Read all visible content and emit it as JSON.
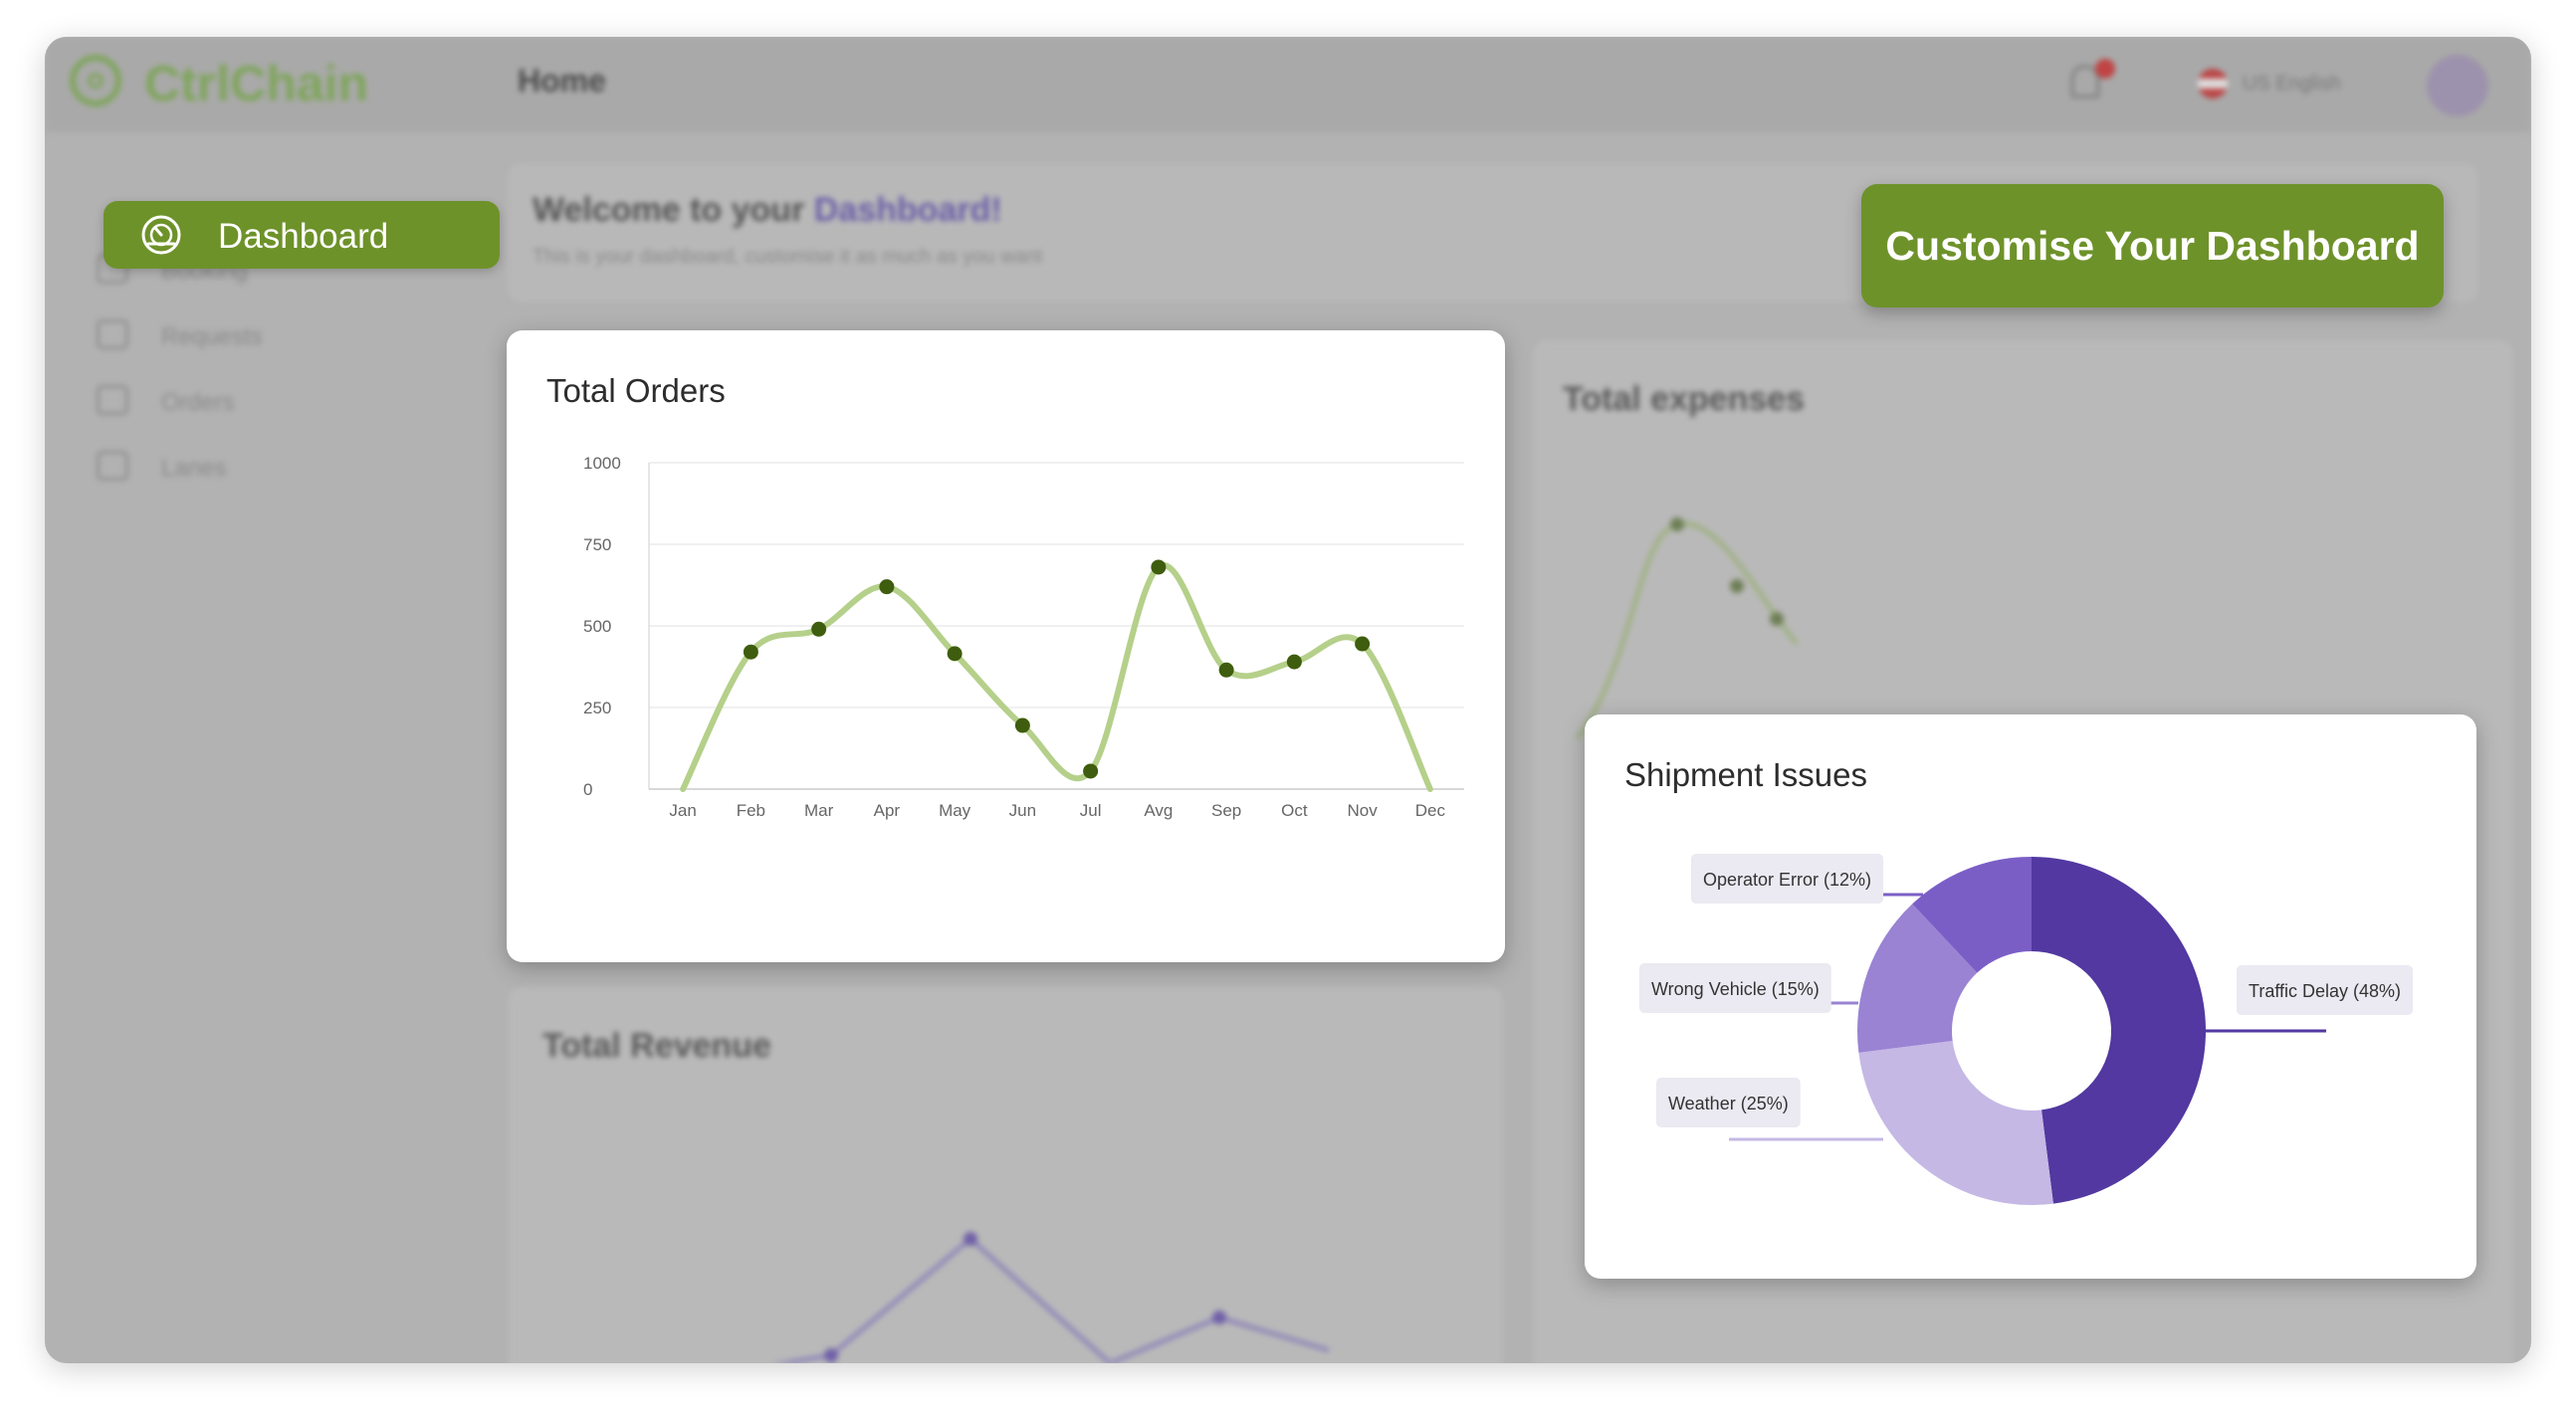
{
  "app": {
    "name": "CtrlChain"
  },
  "header": {
    "title": "Home",
    "language": "US English"
  },
  "sidebar": {
    "items": [
      {
        "label": "Dashboard",
        "active": true
      },
      {
        "label": "Booking"
      },
      {
        "label": "Requests"
      },
      {
        "label": "Orders"
      },
      {
        "label": "Lanes"
      }
    ]
  },
  "welcome": {
    "title_prefix": "Welcome to your ",
    "title_highlight": "Dashboard!",
    "subtitle": "This is your dashboard, customise it as much as you want"
  },
  "actions": {
    "customise_label": "Customise Your Dashboard"
  },
  "background_cards": {
    "expenses_title": "Total expenses",
    "revenue_title": "Total Revenue"
  },
  "colors": {
    "accent": "#6e922a",
    "line": "#b5d08a",
    "point": "#3f5d0e",
    "purple_dark": "#5238a0",
    "purple_mid": "#7a5ec6",
    "purple_light": "#9a83d3",
    "purple_pale": "#c5b8e5"
  },
  "chart_data": [
    {
      "type": "line",
      "title": "Total Orders",
      "categories": [
        "Jan",
        "Feb",
        "Mar",
        "Apr",
        "May",
        "Jun",
        "Jul",
        "Avg",
        "Sep",
        "Oct",
        "Nov",
        "Dec"
      ],
      "values": [
        0,
        420,
        490,
        620,
        415,
        195,
        55,
        680,
        365,
        390,
        445,
        0
      ],
      "yticks": [
        0,
        250,
        500,
        750,
        1000
      ],
      "ylim": [
        0,
        1000
      ],
      "grid": true
    },
    {
      "type": "pie",
      "title": "Shipment Issues",
      "donut": true,
      "slices": [
        {
          "label": "Traffic Delay (48%)",
          "value": 48,
          "color": "#5238a0"
        },
        {
          "label": "Weather (25%)",
          "value": 25,
          "color": "#c5b8e5"
        },
        {
          "label": "Wrong Vehicle (15%)",
          "value": 15,
          "color": "#9a83d3"
        },
        {
          "label": "Operator Error (12%)",
          "value": 12,
          "color": "#7a5ec6"
        }
      ]
    }
  ]
}
